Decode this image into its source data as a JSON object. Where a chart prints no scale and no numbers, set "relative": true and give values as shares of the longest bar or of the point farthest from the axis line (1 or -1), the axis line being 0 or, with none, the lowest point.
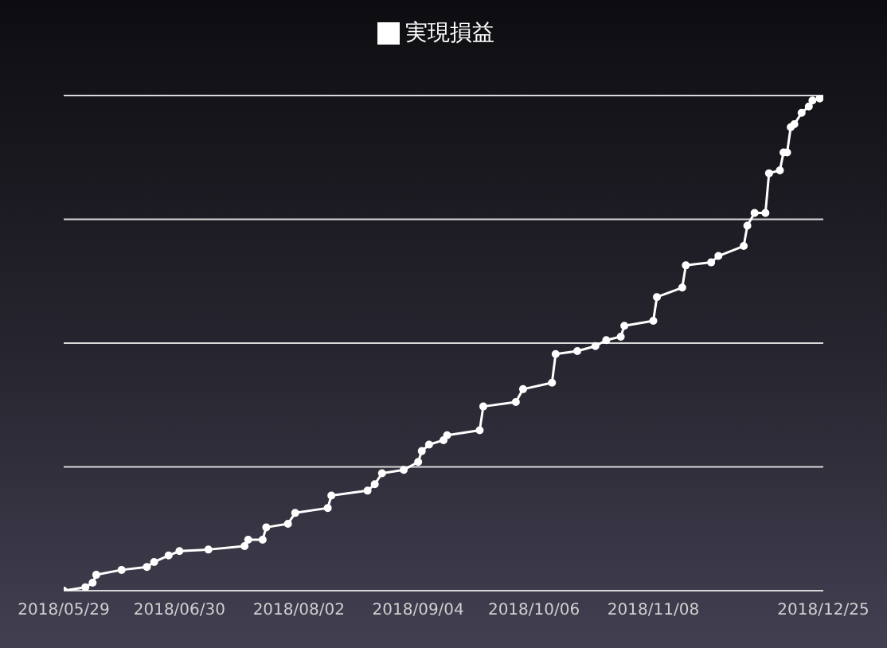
{
  "chart_data": {
    "type": "line",
    "relative": true,
    "legend": "top",
    "grid": "y",
    "marker": "circle",
    "line_style": "solid",
    "xlim": [
      "2018-05-29",
      "2018-12-25"
    ],
    "xticks": [
      {
        "value": "2018-05-29",
        "label": "2018/05/29"
      },
      {
        "value": "2018-06-30",
        "label": "2018/06/30"
      },
      {
        "value": "2018-08-02",
        "label": "2018/08/02"
      },
      {
        "value": "2018-09-04",
        "label": "2018/09/04"
      },
      {
        "value": "2018-10-06",
        "label": "2018/10/06"
      },
      {
        "value": "2018-11-08",
        "label": "2018/11/08"
      },
      {
        "value": "2018-12-25",
        "label": "2018/12/25"
      }
    ],
    "x": [
      "2018-05-29",
      "2018-06-04",
      "2018-06-06",
      "2018-06-07",
      "2018-06-14",
      "2018-06-21",
      "2018-06-23",
      "2018-06-27",
      "2018-06-30",
      "2018-07-08",
      "2018-07-18",
      "2018-07-19",
      "2018-07-23",
      "2018-07-24",
      "2018-07-30",
      "2018-08-01",
      "2018-08-10",
      "2018-08-11",
      "2018-08-21",
      "2018-08-23",
      "2018-08-25",
      "2018-08-31",
      "2018-09-04",
      "2018-09-05",
      "2018-09-07",
      "2018-09-11",
      "2018-09-12",
      "2018-09-21",
      "2018-09-22",
      "2018-10-01",
      "2018-10-03",
      "2018-10-11",
      "2018-10-12",
      "2018-10-18",
      "2018-10-23",
      "2018-10-26",
      "2018-10-30",
      "2018-10-31",
      "2018-11-08",
      "2018-11-09",
      "2018-11-16",
      "2018-11-17",
      "2018-11-24",
      "2018-11-26",
      "2018-12-03",
      "2018-12-04",
      "2018-12-06",
      "2018-12-09",
      "2018-12-10",
      "2018-12-13",
      "2018-12-14",
      "2018-12-15",
      "2018-12-16",
      "2018-12-17",
      "2018-12-19",
      "2018-12-21",
      "2018-12-22",
      "2018-12-24",
      "2018-12-25"
    ],
    "series": [
      {
        "name": "実現損益",
        "color": "#ffffff",
        "values": [
          0,
          0.007,
          0.016,
          0.032,
          0.042,
          0.048,
          0.058,
          0.071,
          0.08,
          0.083,
          0.09,
          0.103,
          0.103,
          0.128,
          0.135,
          0.157,
          0.167,
          0.192,
          0.202,
          0.215,
          0.237,
          0.244,
          0.26,
          0.282,
          0.295,
          0.304,
          0.314,
          0.324,
          0.372,
          0.381,
          0.407,
          0.42,
          0.478,
          0.484,
          0.494,
          0.506,
          0.513,
          0.535,
          0.545,
          0.593,
          0.612,
          0.657,
          0.663,
          0.676,
          0.696,
          0.737,
          0.763,
          0.763,
          0.843,
          0.849,
          0.885,
          0.885,
          0.936,
          0.942,
          0.965,
          0.978,
          0.99,
          0.994,
          1
        ]
      }
    ]
  }
}
